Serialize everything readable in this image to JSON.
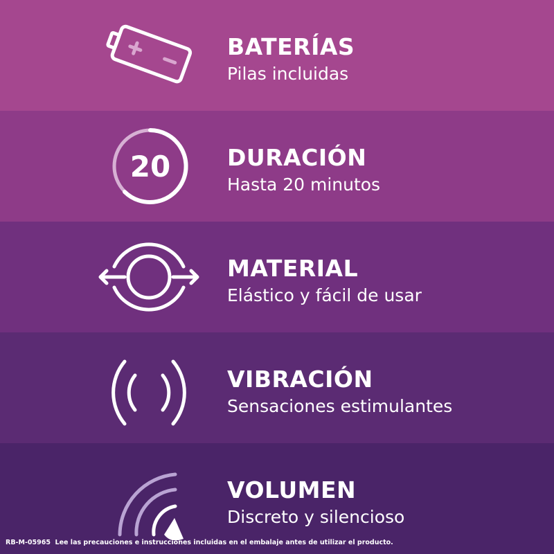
{
  "colors": [
    "#a5478f",
    "#8e3b88",
    "#70307e",
    "#5b2b73",
    "#4a2468"
  ],
  "features": [
    {
      "icon": "battery-icon",
      "title": "BATERÍAS",
      "subtitle": "Pilas incluidas"
    },
    {
      "icon": "timer-20-icon",
      "title": "DURACIÓN",
      "subtitle": "Hasta 20 minutos",
      "icon_text": "20"
    },
    {
      "icon": "stretch-ring-icon",
      "title": "MATERIAL",
      "subtitle": "Elástico y fácil de usar"
    },
    {
      "icon": "vibration-icon",
      "title": "VIBRACIÓN",
      "subtitle": "Sensaciones estimulantes"
    },
    {
      "icon": "volume-icon",
      "title": "VOLUMEN",
      "subtitle": "Discreto y silencioso"
    }
  ],
  "footer": "RB-M-05965  Lee las precauciones e instrucciones incluidas en el embalaje antes de utilizar el producto."
}
